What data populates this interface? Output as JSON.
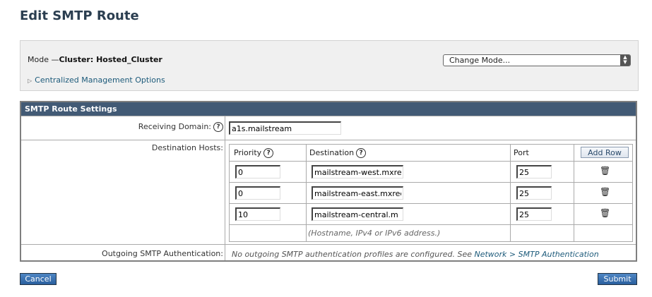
{
  "page_title": "Edit SMTP Route",
  "mode": {
    "label": "Mode —",
    "value": "Cluster: Hosted_Cluster",
    "change_mode": "Change Mode...",
    "centralized_link": "Centralized Management Options"
  },
  "settings": {
    "header": "SMTP Route Settings",
    "receiving_domain_label": "Receiving Domain:",
    "receiving_domain_value": "a1s.mailstream",
    "destination_hosts_label": "Destination Hosts:",
    "columns": {
      "priority": "Priority",
      "destination": "Destination",
      "port": "Port",
      "add_row": "Add Row"
    },
    "hosts": [
      {
        "priority": "0",
        "destination": "mailstream-west.mxre",
        "port": "25"
      },
      {
        "priority": "0",
        "destination": "mailstream-east.mxrec",
        "port": "25"
      },
      {
        "priority": "10",
        "destination": "mailstream-central.m",
        "port": "25"
      }
    ],
    "destination_hint": "(Hostname, IPv4 or IPv6 address.)",
    "auth_label": "Outgoing SMTP Authentication:",
    "auth_text": "No outgoing SMTP authentication profiles are configured. See ",
    "auth_link": "Network > SMTP Authentication"
  },
  "buttons": {
    "cancel": "Cancel",
    "submit": "Submit"
  },
  "colors": {
    "header_bg": "#425a75",
    "link": "#1c5a7a",
    "button": "#2a5f9e"
  }
}
